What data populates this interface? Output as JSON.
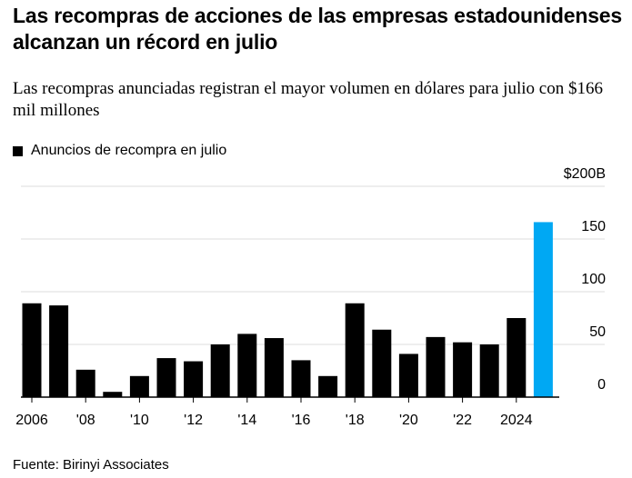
{
  "title": "Las recompras de acciones de las empresas estadounidenses alcanzan un récord en julio",
  "subtitle": "Las recompras anunciadas registran el mayor volumen en dólares para julio con $166 mil millones",
  "legend": {
    "label": "Anuncios de recompra en julio"
  },
  "source": "Fuente: Birinyi Associates",
  "colors": {
    "bar": "#000000",
    "highlight": "#00a8f3",
    "grid": "#dcdcdc",
    "axis": "#000000"
  },
  "chart_data": {
    "type": "bar",
    "categories": [
      "2006",
      "2007",
      "2008",
      "2009",
      "2010",
      "2011",
      "2012",
      "2013",
      "2014",
      "2015",
      "2016",
      "2017",
      "2018",
      "2019",
      "2020",
      "2021",
      "2022",
      "2023",
      "2024",
      "2025"
    ],
    "values": [
      89,
      87,
      26,
      5,
      20,
      37,
      34,
      50,
      60,
      56,
      35,
      20,
      89,
      64,
      41,
      57,
      52,
      50,
      75,
      166
    ],
    "highlight_index": 19,
    "x_tick_labels": [
      {
        "category": "2006",
        "label": "2006"
      },
      {
        "category": "2008",
        "label": "'08"
      },
      {
        "category": "2010",
        "label": "'10"
      },
      {
        "category": "2012",
        "label": "'12"
      },
      {
        "category": "2014",
        "label": "'14"
      },
      {
        "category": "2016",
        "label": "'16"
      },
      {
        "category": "2018",
        "label": "'18"
      },
      {
        "category": "2020",
        "label": "'20"
      },
      {
        "category": "2022",
        "label": "'22"
      },
      {
        "category": "2024",
        "label": "2024"
      }
    ],
    "y_ticks": [
      {
        "value": 0,
        "label": "0"
      },
      {
        "value": 50,
        "label": "50"
      },
      {
        "value": 100,
        "label": "100"
      },
      {
        "value": 150,
        "label": "150"
      },
      {
        "value": 200,
        "label": "$200B"
      }
    ],
    "ylim": [
      0,
      200
    ],
    "grid": true,
    "y_axis_side": "right"
  }
}
